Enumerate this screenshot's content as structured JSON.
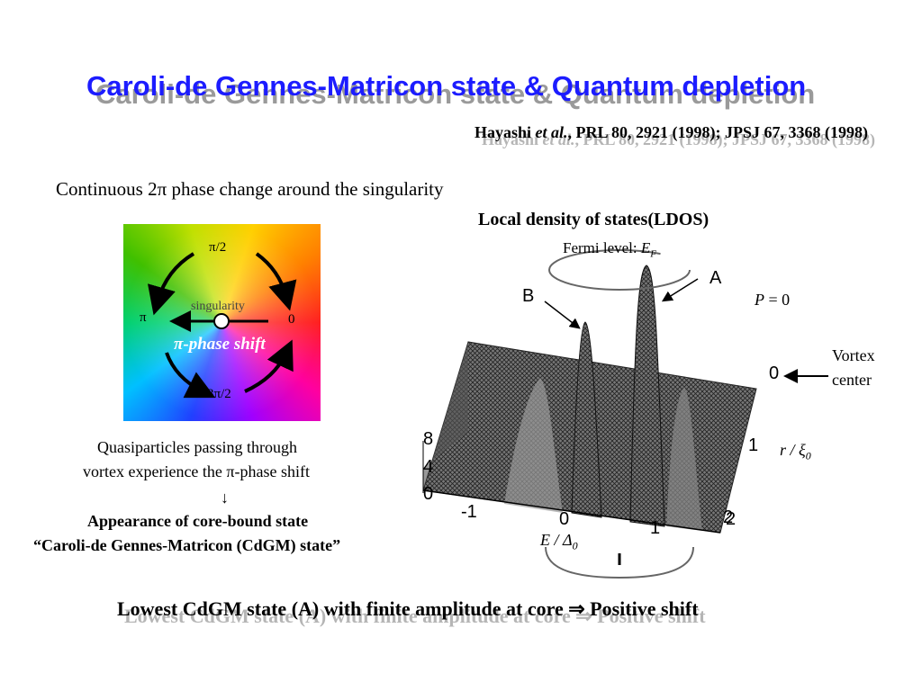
{
  "header": {
    "title": "Caroli-de Gennes-Matricon state & Quantum depletion",
    "reference": {
      "author": "Hayashi ",
      "etal": "et al.",
      "citation": ", PRL 80, 2921 (1998); JPSJ 67, 3368 (1998)"
    }
  },
  "intro": "Continuous 2π phase change around the singularity",
  "phase_diagram": {
    "top": "π/2",
    "left": "π",
    "right": "0",
    "bottom": "3π/2",
    "center": "singularity",
    "caption": "π-phase shift"
  },
  "explanation": {
    "lines": [
      "Quasiparticles passing through",
      "vortex experience the π-phase shift",
      "↓"
    ],
    "conclusion": [
      "Appearance of core-bound state",
      "“Caroli-de Gennes-Matricon (CdGM) state”"
    ]
  },
  "ldos": {
    "title": "Local density of states(LDOS)",
    "fermi": {
      "text": "Fermi level: ",
      "symbol": "E",
      "sub": "F"
    },
    "peak_a": "A",
    "peak_b": "B",
    "momentum": {
      "symbol": "P",
      "rest": " = 0"
    },
    "vortex_center": [
      "Vortex",
      "center"
    ],
    "height_ticks": [
      "8",
      "4",
      "0"
    ],
    "energy_ticks": [
      "-1",
      "0",
      "1",
      "2"
    ],
    "energy_label": {
      "symbol": "E / Δ",
      "sub": "0"
    },
    "r_ticks": [
      "0",
      "1",
      "2"
    ],
    "r_label": {
      "symbol": "r / ξ",
      "sub": "0"
    }
  },
  "footer": "Lowest CdGM state (A) with finite amplitude at core ⇒ Positive shift"
}
